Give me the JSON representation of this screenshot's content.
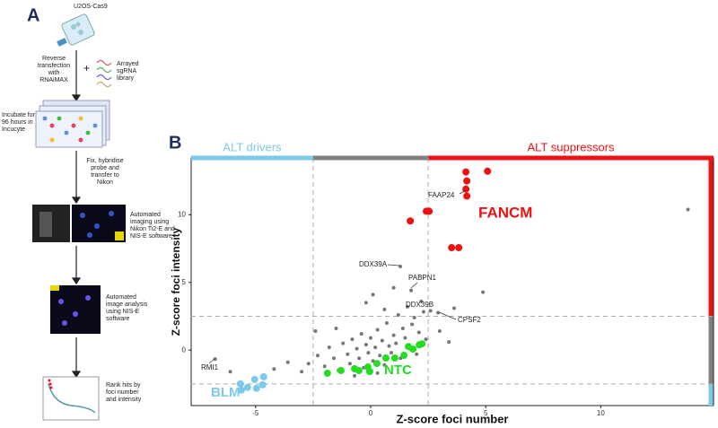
{
  "panel_a": {
    "label": "A",
    "cell_line": "U2OS-Cas9",
    "step1": "Reverse transfection with RNAiMAX",
    "plus": "+",
    "library": "Arrayed sgRNA library",
    "step2": "Incubate for 96 hours in Incucyte",
    "step3": "Fix, hybridise probe and transfer to Nikon",
    "step4": "Automated imaging using Nikon Ti2-E and NIS-E software",
    "step5": "Automated image analysis using NIS-E software",
    "step6": "Rank hits by foci number and intensity"
  },
  "chart_data": {
    "type": "scatter",
    "panel_label": "B",
    "x_label": "Z-score foci number",
    "y_label": "Z-score foci intensity",
    "xlim": [
      -7.8,
      14.9
    ],
    "ylim": [
      -4.1,
      14.2
    ],
    "xticks": [
      -5,
      0,
      5,
      10
    ],
    "yticks": [
      0,
      5,
      10
    ],
    "x_thresholds": [
      -2.5,
      2.5
    ],
    "y_thresholds": [
      -2.5,
      2.5
    ],
    "region_colors": {
      "low": "#7ec8e8",
      "mid": "#808080",
      "high": "#ee1111"
    },
    "region_labels": {
      "low": "ALT drivers",
      "high": "ALT suppressors"
    },
    "series": [
      {
        "color": "#777777",
        "x": [
          -2.7,
          -2.3,
          -2.0,
          -1.8,
          -1.6,
          -1.4,
          -1.2,
          -1.0,
          -0.9,
          -0.8,
          -0.6,
          -0.5,
          -0.4,
          -0.3,
          -0.2,
          -0.1,
          0.0,
          0.1,
          0.2,
          0.3,
          0.4,
          0.5,
          0.6,
          0.7,
          0.8,
          0.9,
          1.0,
          1.1,
          1.2,
          1.3,
          1.4,
          1.5,
          1.6,
          1.7,
          1.8,
          1.9,
          2.0,
          2.1,
          2.2,
          2.4,
          -0.2,
          0.1,
          -3.0,
          -3.6,
          -4.2,
          -2.4,
          -1.5,
          0.6,
          1.0,
          3.0,
          3.4,
          2.6,
          -6.1,
          -0.7,
          0.3,
          1.29,
          1.76,
          2.3,
          2.93,
          -6.76,
          13.79,
          4.88,
          3.63
        ],
        "y": [
          -1.0,
          -0.4,
          -1.2,
          0.2,
          -0.6,
          -1.5,
          0.5,
          -0.3,
          -1.0,
          0.8,
          0.1,
          -0.6,
          1.2,
          -1.3,
          0.4,
          -0.2,
          0.9,
          -0.8,
          0.2,
          1.5,
          -0.4,
          0.7,
          -1.1,
          2.0,
          0.3,
          -0.2,
          1.1,
          0.5,
          2.6,
          -0.6,
          1.6,
          0.9,
          3.2,
          0.1,
          1.9,
          2.4,
          -0.3,
          1.3,
          3.6,
          0.8,
          3.5,
          4.1,
          -1.6,
          -0.9,
          -1.4,
          1.4,
          1.6,
          3.0,
          4.6,
          1.4,
          0.6,
          2.9,
          -1.6,
          -1.9,
          -1.7,
          6.18,
          4.4,
          2.83,
          2.76,
          -0.66,
          10.39,
          4.28,
          3.09
        ]
      },
      {
        "color": "#ee1111",
        "x": [
          4.14,
          5.08,
          4.18,
          4.14,
          4.18,
          2.42,
          2.54,
          1.72,
          3.52,
          3.83
        ],
        "y": [
          13.16,
          13.22,
          12.5,
          11.9,
          11.38,
          10.26,
          10.26,
          9.54,
          7.57,
          7.57
        ]
      },
      {
        "color": "#7ec8e8",
        "x": [
          -5.04,
          -4.65,
          -5.66,
          -5.35,
          -4.96,
          -4.69,
          -5.62
        ],
        "y": [
          -2.17,
          -1.97,
          -2.5,
          -2.76,
          -2.83,
          -2.57,
          -2.96
        ]
      },
      {
        "color": "#22dd22",
        "x": [
          -1.88,
          -1.29,
          -0.7,
          -0.51,
          -0.12,
          0.27,
          0.66,
          1.05,
          1.64,
          1.84,
          2.11,
          2.23,
          1.45,
          -0.04
        ],
        "y": [
          -1.71,
          -1.51,
          -1.38,
          -1.51,
          -1.25,
          -0.99,
          -0.59,
          -0.59,
          0.26,
          0.07,
          0.39,
          0.46,
          -0.39,
          -1.58
        ]
      }
    ],
    "annotations": [
      {
        "text": "FAAP24",
        "color": "#222222"
      },
      {
        "text": "DDX39A",
        "color": "#222222"
      },
      {
        "text": "PABPN1",
        "color": "#222222"
      },
      {
        "text": "DDX39B",
        "color": "#222222"
      },
      {
        "text": "CPSF2",
        "color": "#222222"
      },
      {
        "text": "RMI1",
        "color": "#222222"
      },
      {
        "text": "FANCM",
        "color": "#ee1111"
      },
      {
        "text": "NTC",
        "color": "#22dd22"
      },
      {
        "text": "BLM",
        "color": "#7ec8e8"
      }
    ]
  }
}
